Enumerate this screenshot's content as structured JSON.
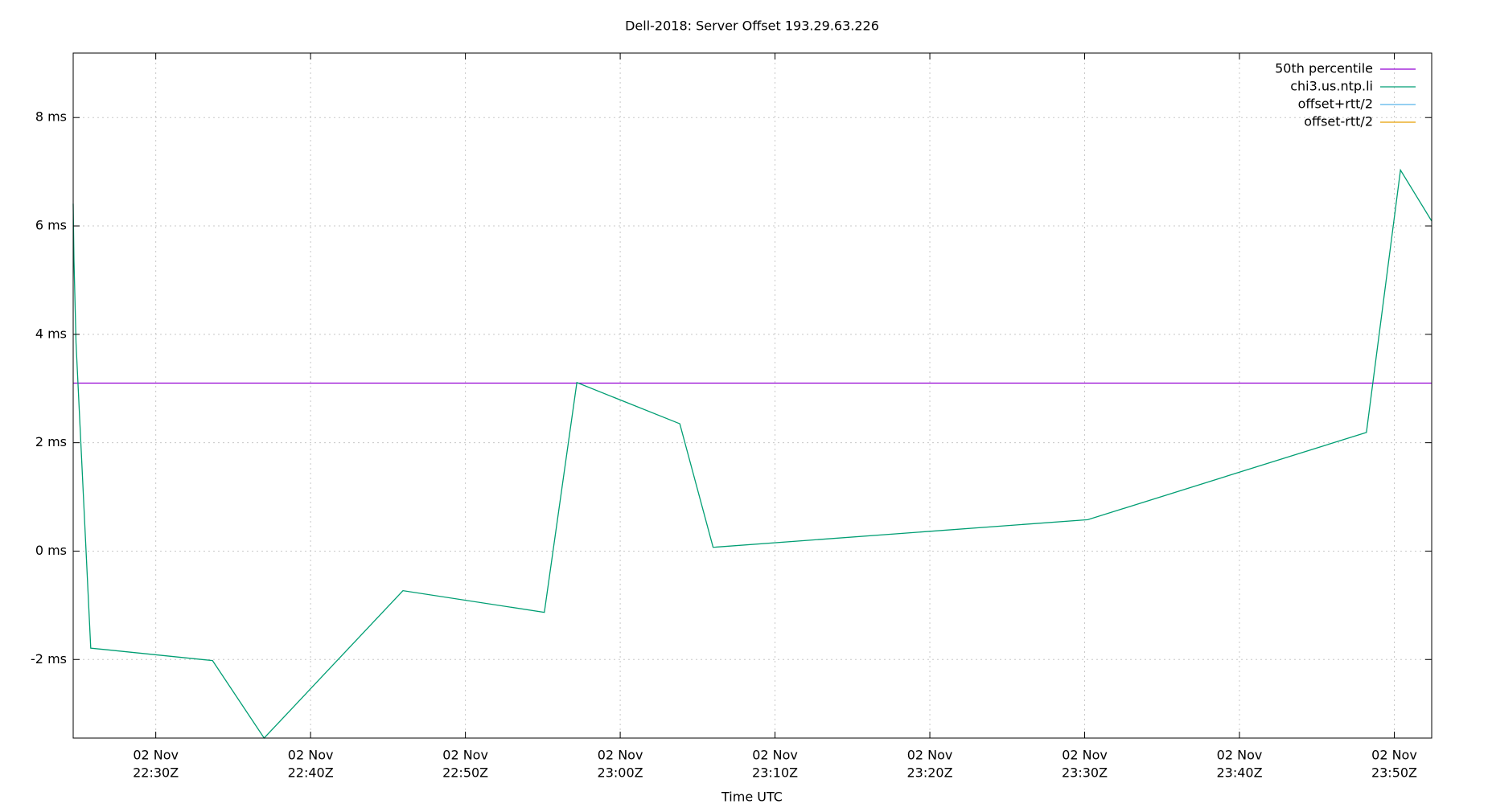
{
  "chart_data": {
    "type": "line",
    "title": "Dell-2018: Server Offset 193.29.63.226",
    "x_label": "Time UTC",
    "x": [
      "22:24:40",
      "22:24:43",
      "22:24:51",
      "22:25:48",
      "22:33:40",
      "22:37:00",
      "22:45:58",
      "22:55:06",
      "22:57:12",
      "23:03:51",
      "23:06:00",
      "23:30:12",
      "23:48:12",
      "23:50:24",
      "23:52:25"
    ],
    "series": [
      {
        "name": "50th percentile",
        "color": "#9400d3",
        "hline": 3.1
      },
      {
        "name": "chi3.us.ntp.li",
        "color": "#009e73",
        "values": [
          6.41,
          5.38,
          3.84,
          -1.79,
          -2.02,
          -3.45,
          -0.73,
          -1.13,
          3.11,
          2.35,
          0.07,
          0.58,
          2.19,
          7.03,
          6.09
        ]
      },
      {
        "name": "offset+rtt/2",
        "color": "#56b4e9"
      },
      {
        "name": "offset-rtt/2",
        "color": "#e69f00"
      }
    ],
    "xlim": [
      "22:24:40",
      "23:52:25"
    ],
    "xticks": [
      {
        "value": "22:30:00",
        "label": [
          "02 Nov",
          "22:30Z"
        ]
      },
      {
        "value": "22:40:00",
        "label": [
          "02 Nov",
          "22:40Z"
        ]
      },
      {
        "value": "22:50:00",
        "label": [
          "02 Nov",
          "22:50Z"
        ]
      },
      {
        "value": "23:00:00",
        "label": [
          "02 Nov",
          "23:00Z"
        ]
      },
      {
        "value": "23:10:00",
        "label": [
          "02 Nov",
          "23:10Z"
        ]
      },
      {
        "value": "23:20:00",
        "label": [
          "02 Nov",
          "23:20Z"
        ]
      },
      {
        "value": "23:30:00",
        "label": [
          "02 Nov",
          "23:30Z"
        ]
      },
      {
        "value": "23:40:00",
        "label": [
          "02 Nov",
          "23:40Z"
        ]
      },
      {
        "value": "23:50:00",
        "label": [
          "02 Nov",
          "23:50Z"
        ]
      }
    ],
    "ylim": [
      -3.45,
      9.19
    ],
    "yticks": [
      {
        "value": -2,
        "label": "-2 ms"
      },
      {
        "value": 0,
        "label": "0 ms"
      },
      {
        "value": 2,
        "label": "2 ms"
      },
      {
        "value": 4,
        "label": "4 ms"
      },
      {
        "value": 6,
        "label": "6 ms"
      },
      {
        "value": 8,
        "label": "8 ms"
      }
    ],
    "grid": true,
    "legend": "top-right"
  }
}
